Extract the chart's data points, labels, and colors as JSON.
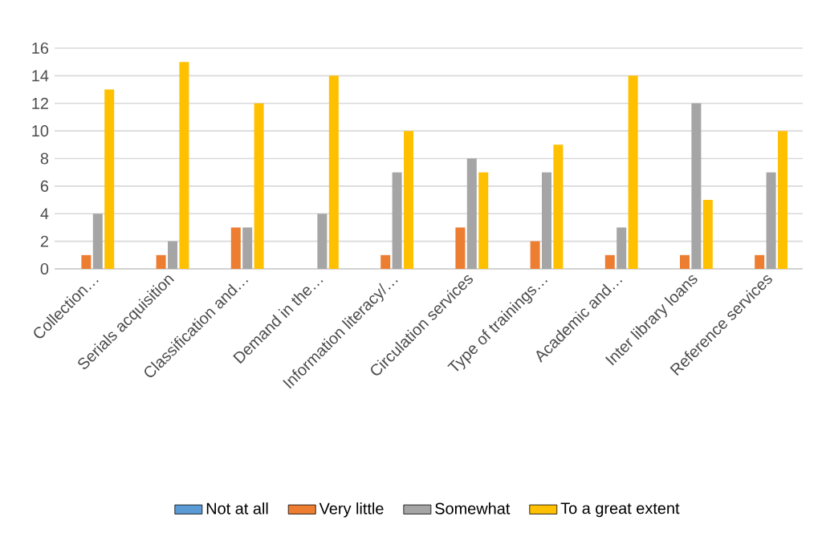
{
  "chart_data": {
    "type": "bar",
    "categories": [
      "Collection…",
      "Serials acquisition",
      "Classification and…",
      "Demand in the…",
      "Information literacy/…",
      "Circulation services",
      "Type of trainings…",
      "Academic and…",
      "Inter library loans",
      "Reference services"
    ],
    "series": [
      {
        "name": "Not at all",
        "color": "#5b9bd5",
        "values": [
          0,
          0,
          0,
          0,
          0,
          0,
          0,
          0,
          0,
          0
        ]
      },
      {
        "name": "Very little",
        "color": "#ed7d31",
        "values": [
          1,
          1,
          3,
          0,
          1,
          3,
          2,
          1,
          1,
          1
        ]
      },
      {
        "name": "Somewhat",
        "color": "#a5a5a5",
        "values": [
          4,
          2,
          3,
          4,
          7,
          8,
          7,
          3,
          12,
          7
        ]
      },
      {
        "name": "To a great extent",
        "color": "#ffc000",
        "values": [
          13,
          15,
          12,
          14,
          10,
          7,
          9,
          14,
          5,
          10
        ]
      }
    ],
    "ylim": [
      0,
      16
    ],
    "yticks": [
      0,
      2,
      4,
      6,
      8,
      10,
      12,
      14,
      16
    ],
    "grid": "y",
    "legend": "bottom"
  }
}
